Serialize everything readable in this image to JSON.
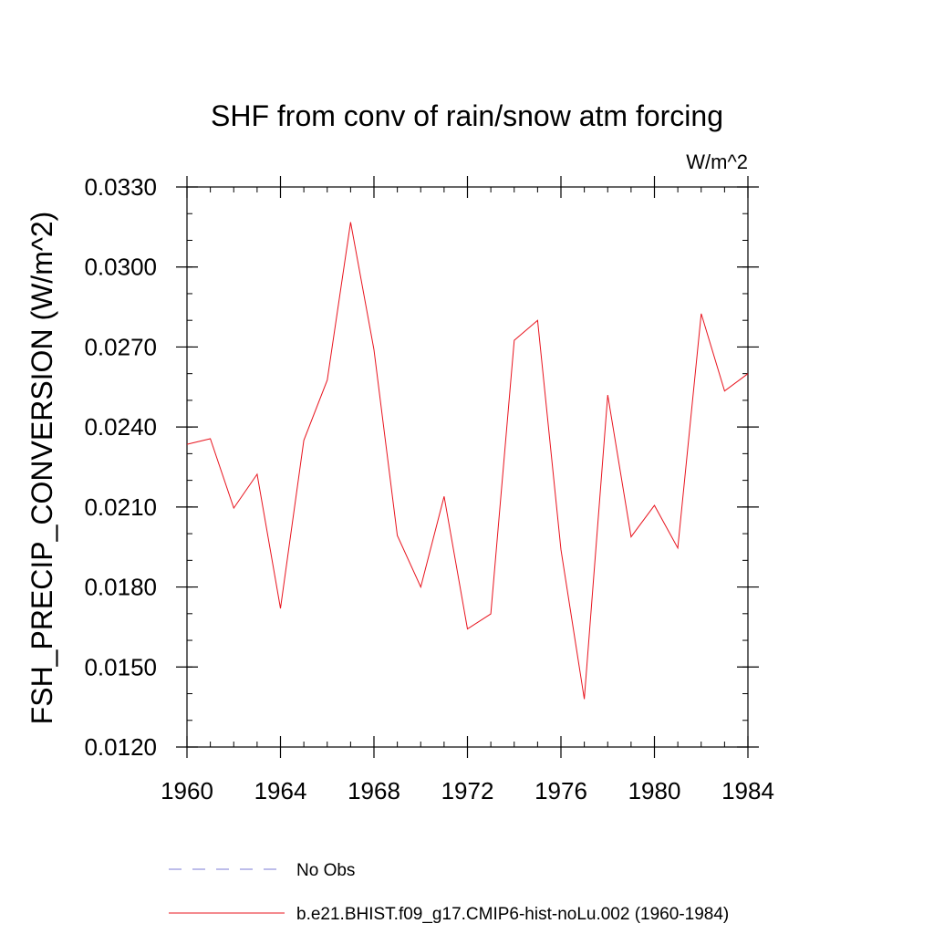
{
  "chart_data": {
    "type": "line",
    "title": "SHF from conv of rain/snow atm forcing",
    "units_label": "W/m^2",
    "ylabel": "FSH_PRECIP_CONVERSION  (W/m^2)",
    "xlabel": "",
    "xlim": [
      1960,
      1984
    ],
    "ylim": [
      0.012,
      0.033
    ],
    "x_ticks": [
      1960,
      1964,
      1968,
      1972,
      1976,
      1980,
      1984
    ],
    "x_tick_labels": [
      "1960",
      "1964",
      "1968",
      "1972",
      "1976",
      "1980",
      "1984"
    ],
    "y_ticks": [
      0.012,
      0.015,
      0.018,
      0.021,
      0.024,
      0.027,
      0.03,
      0.033
    ],
    "y_tick_labels": [
      "0.0120",
      "0.0150",
      "0.0180",
      "0.0210",
      "0.0240",
      "0.0270",
      "0.0300",
      "0.0330"
    ],
    "grid": false,
    "legend_position": "bottom",
    "series": [
      {
        "name": "b.e21.BHIST.f09_g17.CMIP6-hist-noLu.002 (1960-1984)",
        "color": "#e8141e",
        "style": "solid",
        "x": [
          1960,
          1961,
          1962,
          1963,
          1964,
          1965,
          1966,
          1967,
          1968,
          1969,
          1970,
          1971,
          1972,
          1973,
          1974,
          1975,
          1976,
          1977,
          1978,
          1979,
          1980,
          1981,
          1982,
          1983,
          1984
        ],
        "y": [
          0.02335,
          0.02356,
          0.02096,
          0.02223,
          0.0172,
          0.0235,
          0.02576,
          0.03168,
          0.0269,
          0.01993,
          0.018,
          0.0214,
          0.01643,
          0.01699,
          0.02725,
          0.028,
          0.0194,
          0.0138,
          0.0252,
          0.01988,
          0.02106,
          0.01946,
          0.02825,
          0.02535,
          0.026
        ]
      }
    ],
    "legend": [
      {
        "label": "No Obs",
        "color": "#7b7bd6",
        "style": "dashed"
      },
      {
        "label": "b.e21.BHIST.f09_g17.CMIP6-hist-noLu.002 (1960-1984)",
        "color": "#e8141e",
        "style": "solid"
      }
    ]
  }
}
